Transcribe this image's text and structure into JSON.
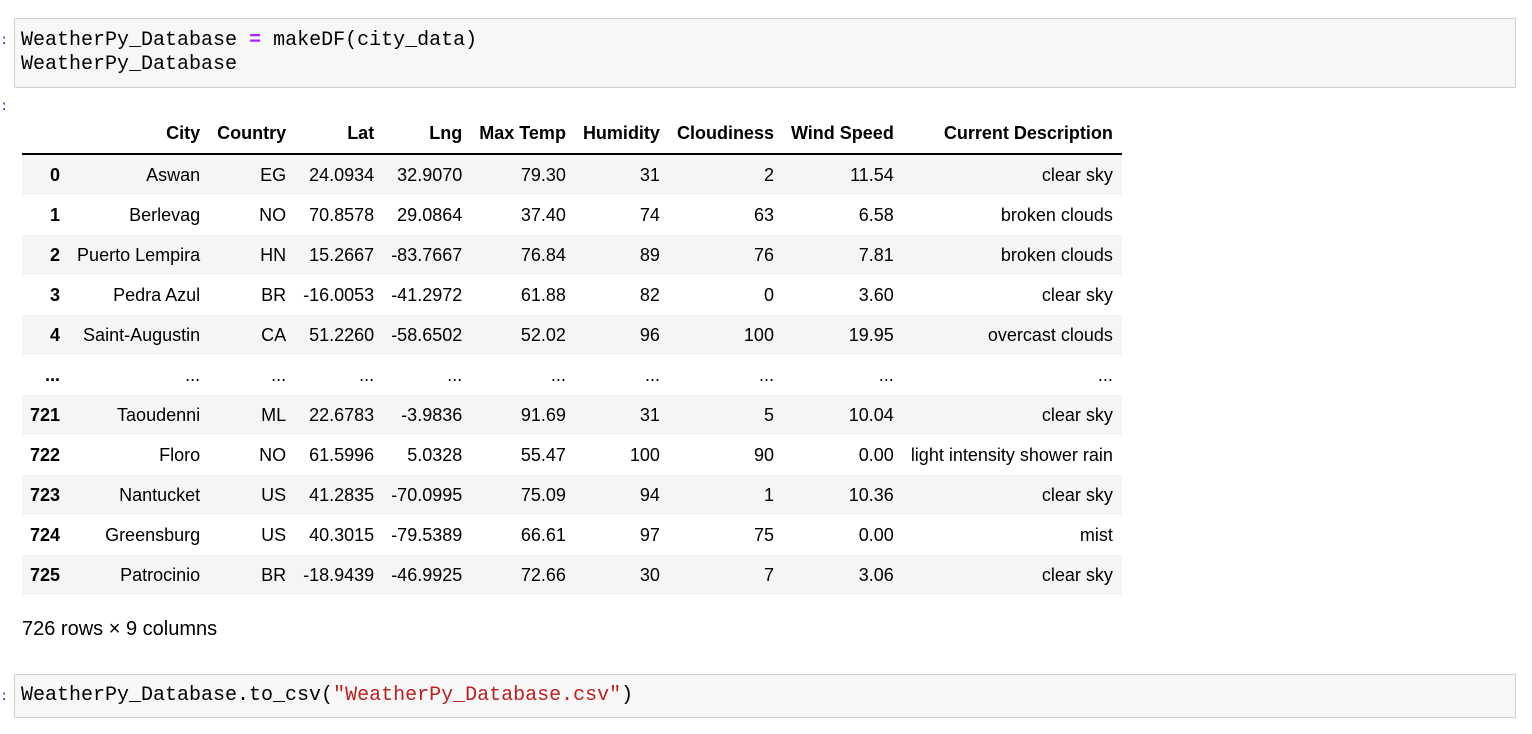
{
  "cells": {
    "in1": {
      "line1_var": "WeatherPy_Database",
      "line1_op": "=",
      "line1_call": "makeDF(city_data)",
      "line2": "WeatherPy_Database"
    },
    "in2": {
      "prefix": "WeatherPy_Database.to_csv(",
      "string": "\"WeatherPy_Database.csv\"",
      "suffix": ")"
    }
  },
  "table": {
    "columns": [
      "",
      "City",
      "Country",
      "Lat",
      "Lng",
      "Max Temp",
      "Humidity",
      "Cloudiness",
      "Wind Speed",
      "Current Description"
    ],
    "rows": [
      [
        "0",
        "Aswan",
        "EG",
        "24.0934",
        "32.9070",
        "79.30",
        "31",
        "2",
        "11.54",
        "clear sky"
      ],
      [
        "1",
        "Berlevag",
        "NO",
        "70.8578",
        "29.0864",
        "37.40",
        "74",
        "63",
        "6.58",
        "broken clouds"
      ],
      [
        "2",
        "Puerto Lempira",
        "HN",
        "15.2667",
        "-83.7667",
        "76.84",
        "89",
        "76",
        "7.81",
        "broken clouds"
      ],
      [
        "3",
        "Pedra Azul",
        "BR",
        "-16.0053",
        "-41.2972",
        "61.88",
        "82",
        "0",
        "3.60",
        "clear sky"
      ],
      [
        "4",
        "Saint-Augustin",
        "CA",
        "51.2260",
        "-58.6502",
        "52.02",
        "96",
        "100",
        "19.95",
        "overcast clouds"
      ],
      [
        "...",
        "...",
        "...",
        "...",
        "...",
        "...",
        "...",
        "...",
        "...",
        "..."
      ],
      [
        "721",
        "Taoudenni",
        "ML",
        "22.6783",
        "-3.9836",
        "91.69",
        "31",
        "5",
        "10.04",
        "clear sky"
      ],
      [
        "722",
        "Floro",
        "NO",
        "61.5996",
        "5.0328",
        "55.47",
        "100",
        "90",
        "0.00",
        "light intensity shower rain"
      ],
      [
        "723",
        "Nantucket",
        "US",
        "41.2835",
        "-70.0995",
        "75.09",
        "94",
        "1",
        "10.36",
        "clear sky"
      ],
      [
        "724",
        "Greensburg",
        "US",
        "40.3015",
        "-79.5389",
        "66.61",
        "97",
        "75",
        "0.00",
        "mist"
      ],
      [
        "725",
        "Patrocinio",
        "BR",
        "-18.9439",
        "-46.9925",
        "72.66",
        "30",
        "7",
        "3.06",
        "clear sky"
      ]
    ]
  },
  "shape_text": "726 rows × 9 columns",
  "prompt_marks": [
    ":",
    ":",
    ":"
  ]
}
